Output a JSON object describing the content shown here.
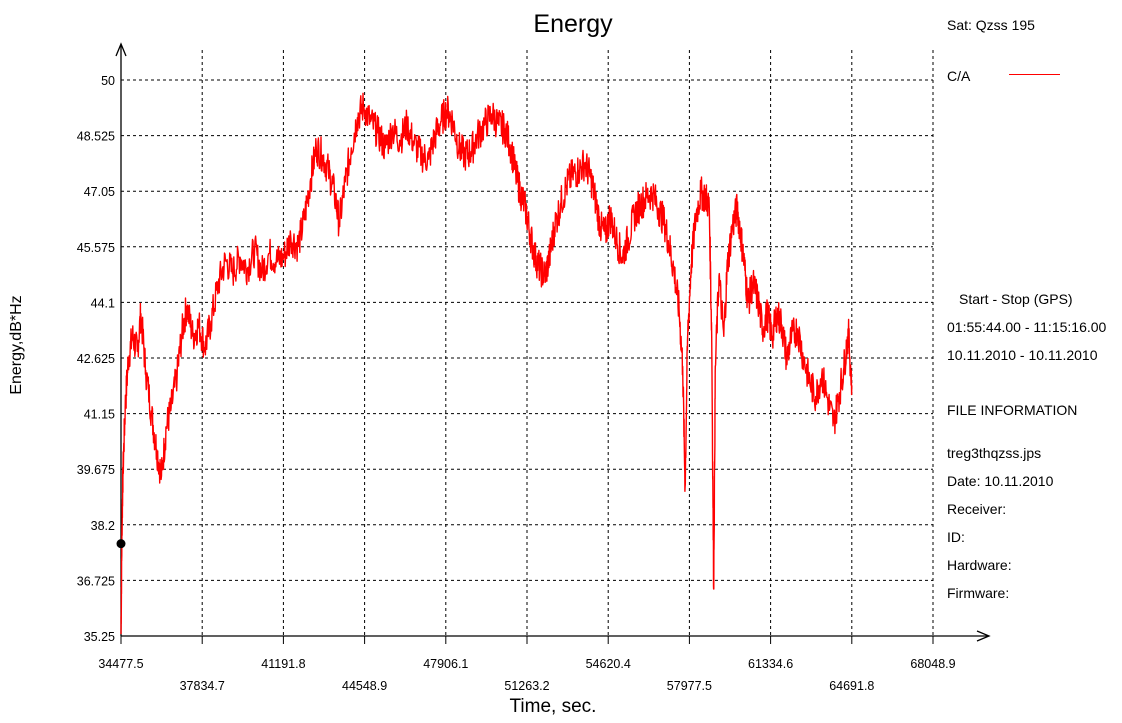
{
  "chart_data": {
    "type": "line",
    "title": "Energy",
    "xlabel": "Time, sec.",
    "ylabel": "Energy,dB*Hz",
    "xlim": [
      34477.5,
      68048.9
    ],
    "ylim": [
      35.25,
      50
    ],
    "x_ticks": [
      "34477.5",
      "37834.7",
      "41191.8",
      "44548.9",
      "47906.1",
      "51263.2",
      "54620.4",
      "57977.5",
      "61334.6",
      "64691.8",
      "68048.9"
    ],
    "y_ticks": [
      "35.25",
      "36.725",
      "38.2",
      "39.675",
      "41.15",
      "42.625",
      "44.1",
      "45.575",
      "47.05",
      "48.525",
      "50"
    ],
    "grid": true,
    "series": [
      {
        "name": "C/A",
        "color": "#ff0000",
        "points": [
          [
            34477.5,
            35.3
          ],
          [
            34520,
            38.2
          ],
          [
            34560,
            39.6
          ],
          [
            34650,
            41.3
          ],
          [
            34780,
            42.6
          ],
          [
            34950,
            43.2
          ],
          [
            35150,
            42.8
          ],
          [
            35300,
            43.8
          ],
          [
            35500,
            42.3
          ],
          [
            35750,
            41.1
          ],
          [
            35950,
            40.2
          ],
          [
            36150,
            39.5
          ],
          [
            36350,
            40.8
          ],
          [
            36550,
            41.3
          ],
          [
            36800,
            42.2
          ],
          [
            37000,
            43.3
          ],
          [
            37200,
            44.0
          ],
          [
            37450,
            43.2
          ],
          [
            37700,
            43.5
          ],
          [
            37950,
            42.9
          ],
          [
            38200,
            43.6
          ],
          [
            38500,
            44.6
          ],
          [
            38800,
            45.2
          ],
          [
            39100,
            44.9
          ],
          [
            39400,
            45.3
          ],
          [
            39700,
            45.0
          ],
          [
            40000,
            45.5
          ],
          [
            40300,
            44.9
          ],
          [
            40600,
            45.4
          ],
          [
            40900,
            45.2
          ],
          [
            41200,
            45.3
          ],
          [
            41500,
            45.8
          ],
          [
            41800,
            45.6
          ],
          [
            42050,
            46.3
          ],
          [
            42300,
            47.3
          ],
          [
            42550,
            48.2
          ],
          [
            42800,
            48.0
          ],
          [
            43050,
            47.6
          ],
          [
            43300,
            47.0
          ],
          [
            43500,
            46.2
          ],
          [
            43750,
            47.3
          ],
          [
            44000,
            48.2
          ],
          [
            44250,
            49.0
          ],
          [
            44500,
            49.3
          ],
          [
            44800,
            48.9
          ],
          [
            45100,
            48.6
          ],
          [
            45400,
            48.2
          ],
          [
            45700,
            48.7
          ],
          [
            46000,
            48.4
          ],
          [
            46300,
            48.8
          ],
          [
            46600,
            48.3
          ],
          [
            46900,
            48.0
          ],
          [
            47200,
            47.9
          ],
          [
            47450,
            48.5
          ],
          [
            47700,
            48.9
          ],
          [
            47950,
            49.2
          ],
          [
            48200,
            48.9
          ],
          [
            48450,
            48.2
          ],
          [
            48700,
            48.0
          ],
          [
            48950,
            48.1
          ],
          [
            49200,
            48.5
          ],
          [
            49500,
            48.8
          ],
          [
            49800,
            49.1
          ],
          [
            50100,
            48.8
          ],
          [
            50350,
            48.7
          ],
          [
            50600,
            48.2
          ],
          [
            50800,
            47.5
          ],
          [
            51000,
            47.0
          ],
          [
            51200,
            46.6
          ],
          [
            51400,
            45.9
          ],
          [
            51600,
            45.3
          ],
          [
            51800,
            45.0
          ],
          [
            52000,
            44.8
          ],
          [
            52200,
            45.3
          ],
          [
            52400,
            46.1
          ],
          [
            52650,
            46.7
          ],
          [
            52900,
            47.2
          ],
          [
            53150,
            47.5
          ],
          [
            53400,
            47.6
          ],
          [
            53650,
            47.8
          ],
          [
            53900,
            47.4
          ],
          [
            54100,
            46.8
          ],
          [
            54300,
            46.1
          ],
          [
            54500,
            45.9
          ],
          [
            54700,
            46.4
          ],
          [
            54950,
            45.8
          ],
          [
            55200,
            45.3
          ],
          [
            55450,
            45.8
          ],
          [
            55700,
            46.4
          ],
          [
            55950,
            46.7
          ],
          [
            56200,
            46.9
          ],
          [
            56450,
            47.0
          ],
          [
            56700,
            46.6
          ],
          [
            56950,
            46.2
          ],
          [
            57150,
            45.6
          ],
          [
            57350,
            44.9
          ],
          [
            57550,
            43.9
          ],
          [
            57700,
            42.4
          ],
          [
            57800,
            39.2
          ],
          [
            57900,
            43.1
          ],
          [
            58050,
            45.1
          ],
          [
            58250,
            46.4
          ],
          [
            58450,
            47.0
          ],
          [
            58650,
            46.9
          ],
          [
            58800,
            46.6
          ],
          [
            58900,
            43.2
          ],
          [
            58980,
            36.5
          ],
          [
            59050,
            42.4
          ],
          [
            59200,
            44.8
          ],
          [
            59400,
            43.2
          ],
          [
            59550,
            45.1
          ],
          [
            59750,
            46.1
          ],
          [
            59950,
            46.6
          ],
          [
            60100,
            45.9
          ],
          [
            60250,
            45.1
          ],
          [
            60400,
            44.1
          ],
          [
            60600,
            44.6
          ],
          [
            60800,
            44.2
          ],
          [
            61000,
            43.4
          ],
          [
            61200,
            43.8
          ],
          [
            61400,
            43.2
          ],
          [
            61600,
            43.8
          ],
          [
            61800,
            43.5
          ],
          [
            62000,
            42.6
          ],
          [
            62200,
            43.2
          ],
          [
            62450,
            43.4
          ],
          [
            62700,
            42.6
          ],
          [
            62950,
            42.0
          ],
          [
            63200,
            41.6
          ],
          [
            63450,
            42.2
          ],
          [
            63700,
            41.5
          ],
          [
            63950,
            40.9
          ],
          [
            64150,
            41.6
          ],
          [
            64350,
            42.3
          ],
          [
            64550,
            43.3
          ],
          [
            64691.8,
            41.9
          ]
        ]
      }
    ],
    "marker": {
      "x": 34477.5,
      "y": 37.7
    }
  },
  "sidebar": {
    "sat": "Sat: Qzss  195",
    "legend_label": "C/A",
    "legend_color": "#ff0000",
    "start_stop_label": "Start  -  Stop  (GPS)",
    "time_range": "01:55:44.00 - 11:15:16.00",
    "date_range": "10.11.2010 - 10.11.2010",
    "file_info_title": "FILE INFORMATION",
    "file_name": "treg3thqzss.jps",
    "date": "Date: 10.11.2010",
    "receiver": "Receiver:",
    "id": "ID:",
    "hardware": "Hardware:",
    "firmware": "Firmware:"
  }
}
